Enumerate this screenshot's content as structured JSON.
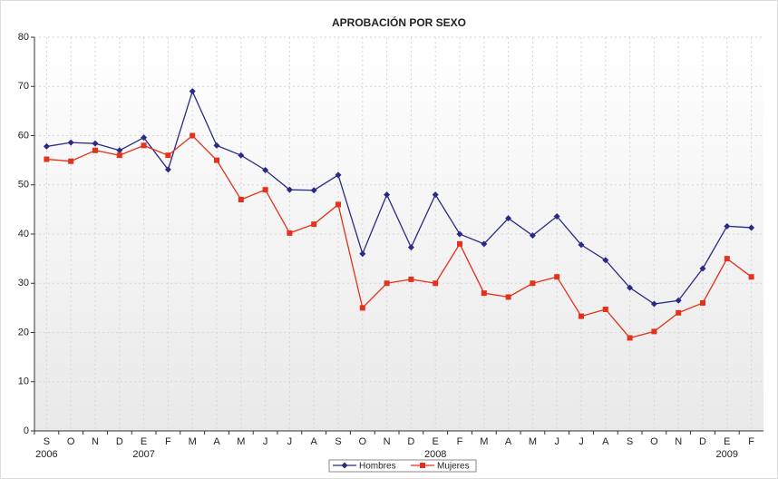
{
  "chart_data": {
    "type": "line",
    "title": "APROBACIÓN POR SEXO",
    "categories": [
      "S",
      "O",
      "N",
      "D",
      "E",
      "F",
      "M",
      "A",
      "M",
      "J",
      "J",
      "A",
      "S",
      "O",
      "N",
      "D",
      "E",
      "F",
      "M",
      "A",
      "M",
      "J",
      "J",
      "A",
      "S",
      "O",
      "N",
      "D",
      "E",
      "F"
    ],
    "year_labels": [
      "2006",
      null,
      null,
      null,
      "2007",
      null,
      null,
      null,
      null,
      null,
      null,
      null,
      null,
      null,
      null,
      null,
      "2008",
      null,
      null,
      null,
      null,
      null,
      null,
      null,
      null,
      null,
      null,
      null,
      "2009",
      null
    ],
    "series": [
      {
        "name": "Hombres",
        "color": "#2b2a84",
        "marker": "diamond",
        "values": [
          57.8,
          58.6,
          58.4,
          57,
          59.6,
          53.1,
          69,
          58,
          56,
          53,
          49,
          48.9,
          52,
          36,
          48,
          37.3,
          48,
          40,
          38,
          43.2,
          39.7,
          43.6,
          37.8,
          34.7,
          29.1,
          25.8,
          26.5,
          33,
          41.6,
          41.3
        ]
      },
      {
        "name": "Mujeres",
        "color": "#e2321c",
        "marker": "square",
        "values": [
          55.2,
          54.8,
          57,
          56,
          58,
          56,
          60,
          55,
          47,
          49,
          40.2,
          42,
          46,
          25,
          30,
          30.8,
          30,
          38,
          28,
          27.2,
          30,
          31.3,
          23.3,
          24.7,
          18.9,
          20.2,
          24,
          26,
          35,
          31.3
        ]
      }
    ],
    "ylim": [
      0,
      80
    ],
    "yticks": [
      0,
      10,
      20,
      30,
      40,
      50,
      60,
      70,
      80
    ],
    "grid": true,
    "legend": "bottom"
  }
}
